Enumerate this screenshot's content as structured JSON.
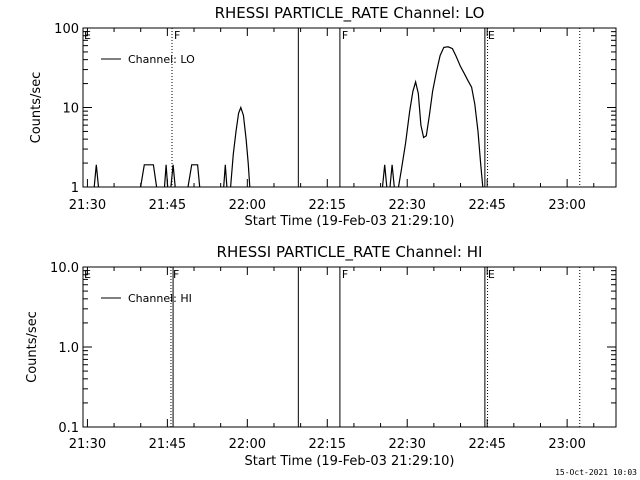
{
  "chart_data": [
    {
      "type": "line",
      "title": "RHESSI PARTICLE_RATE Channel: LO",
      "xlabel": "Start Time (19-Feb-03 21:29:10)",
      "ylabel": "Counts/sec",
      "yscale": "log",
      "ylim": [
        1,
        100
      ],
      "xlim_minutes": [
        0,
        100
      ],
      "x_ticks": [
        {
          "label": "21:30",
          "min": 0.83
        },
        {
          "label": "21:45",
          "min": 15.83
        },
        {
          "label": "22:00",
          "min": 30.83
        },
        {
          "label": "22:15",
          "min": 45.83
        },
        {
          "label": "22:30",
          "min": 60.83
        },
        {
          "label": "22:45",
          "min": 75.83
        },
        {
          "label": "23:00",
          "min": 90.83
        }
      ],
      "y_ticks": [
        "1",
        "10",
        "100"
      ],
      "legend": "top-left",
      "series": [
        {
          "name": "Channel: LO",
          "segments": [
            [
              [
                2.1,
                1
              ],
              [
                2.5,
                1.9
              ],
              [
                2.9,
                1
              ]
            ],
            [
              [
                10.8,
                1
              ],
              [
                11.5,
                1.9
              ],
              [
                13.2,
                1.9
              ],
              [
                13.8,
                1
              ]
            ],
            [
              [
                15.3,
                1
              ],
              [
                15.6,
                1.9
              ],
              [
                15.9,
                1
              ]
            ],
            [
              [
                16.5,
                1
              ],
              [
                16.9,
                1.9
              ],
              [
                17.3,
                1
              ]
            ],
            [
              [
                19.7,
                1
              ],
              [
                20.4,
                1.9
              ],
              [
                21.5,
                1.9
              ],
              [
                21.9,
                1
              ]
            ],
            [
              [
                26.4,
                1
              ],
              [
                26.7,
                1.9
              ],
              [
                27.0,
                1
              ]
            ],
            [
              [
                27.7,
                1
              ],
              [
                28.2,
                2.6
              ],
              [
                28.7,
                5.0
              ],
              [
                29.2,
                8.5
              ],
              [
                29.6,
                10
              ],
              [
                30.1,
                8.0
              ],
              [
                30.6,
                4.0
              ],
              [
                31.0,
                2.0
              ],
              [
                31.3,
                1
              ]
            ],
            [
              [
                56.2,
                1
              ],
              [
                56.6,
                1.9
              ],
              [
                57.0,
                1
              ]
            ],
            [
              [
                57.6,
                1
              ],
              [
                58.0,
                1.9
              ],
              [
                58.4,
                1
              ]
            ],
            [
              [
                59.2,
                1
              ],
              [
                59.7,
                1.6
              ],
              [
                60.5,
                3.5
              ],
              [
                61.3,
                9
              ],
              [
                61.9,
                16
              ],
              [
                62.4,
                21
              ],
              [
                62.9,
                15
              ],
              [
                63.4,
                6
              ],
              [
                63.9,
                4.2
              ],
              [
                64.4,
                4.4
              ],
              [
                65.0,
                8
              ],
              [
                65.6,
                16
              ],
              [
                66.3,
                28
              ],
              [
                67.0,
                45
              ],
              [
                67.7,
                57
              ],
              [
                68.5,
                58
              ],
              [
                69.3,
                55
              ],
              [
                70.0,
                44
              ],
              [
                70.8,
                33
              ],
              [
                71.5,
                27
              ],
              [
                72.2,
                22
              ],
              [
                72.9,
                18
              ],
              [
                73.5,
                11
              ],
              [
                74.1,
                5
              ],
              [
                74.6,
                2
              ],
              [
                75.0,
                1
              ]
            ]
          ]
        }
      ],
      "annotations": [
        "E",
        "F",
        "F",
        "E"
      ],
      "vlines_solid_min": [
        40.4,
        48.2,
        75.4
      ],
      "vlines_dotted_min": [
        16.7,
        75.9,
        93.2
      ]
    },
    {
      "type": "line",
      "title": "RHESSI PARTICLE_RATE Channel: HI",
      "xlabel": "Start Time (19-Feb-03 21:29:10)",
      "ylabel": "Counts/sec",
      "yscale": "log",
      "ylim": [
        0.1,
        10
      ],
      "xlim_minutes": [
        0,
        100
      ],
      "x_ticks": [
        {
          "label": "21:30",
          "min": 0.83
        },
        {
          "label": "21:45",
          "min": 15.83
        },
        {
          "label": "22:00",
          "min": 30.83
        },
        {
          "label": "22:15",
          "min": 45.83
        },
        {
          "label": "22:30",
          "min": 60.83
        },
        {
          "label": "22:45",
          "min": 75.83
        },
        {
          "label": "23:00",
          "min": 90.83
        }
      ],
      "y_ticks": [
        "0.1",
        "1.0",
        "10.0"
      ],
      "legend": "top-left",
      "series": [
        {
          "name": "Channel: HI",
          "segments": []
        }
      ],
      "annotations": [
        "E",
        "F",
        "F",
        "E"
      ],
      "vlines_solid_min": [
        16.9,
        40.4,
        48.2,
        75.4
      ],
      "vlines_dotted_min": [
        16.5,
        75.9,
        93.2
      ]
    }
  ],
  "timestamp": "15-Oct-2021 10:03"
}
